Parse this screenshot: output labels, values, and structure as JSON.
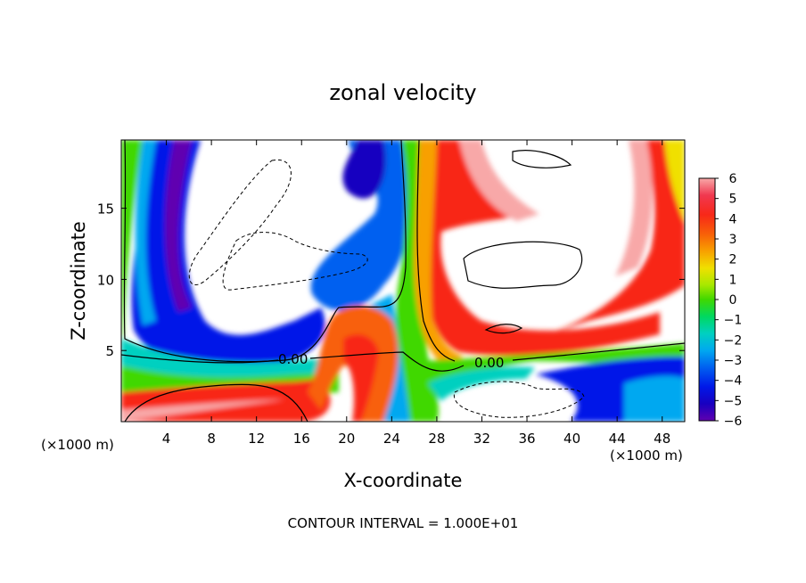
{
  "chart_data": {
    "type": "heatmap",
    "title": "zonal velocity",
    "xlabel": "X-coordinate",
    "ylabel": "Z-coordinate",
    "x_unit_left": "(×1000 m)",
    "x_unit_right": "(×1000 m)",
    "footer": "CONTOUR INTERVAL = 1.000E+01",
    "xlim": [
      0,
      50
    ],
    "ylim": [
      0,
      19.8
    ],
    "x_ticks": [
      4,
      8,
      12,
      16,
      20,
      24,
      28,
      32,
      36,
      40,
      44,
      48
    ],
    "y_ticks": [
      5,
      10,
      15
    ],
    "colorbar": {
      "ticks": [
        6,
        5,
        4,
        3,
        2,
        1,
        0,
        -1,
        -2,
        -3,
        -4,
        -5,
        -6
      ],
      "range": [
        -6,
        6
      ],
      "colors": [
        "#f8a8a8",
        "#f03850",
        "#f82818",
        "#f86008",
        "#f8a000",
        "#f0e000",
        "#a8e800",
        "#40d800",
        "#00d860",
        "#00d0c0",
        "#00a8f0",
        "#0060f0",
        "#0018e8",
        "#1800c0",
        "#6000b0"
      ]
    },
    "contour_labels": [
      {
        "text": "0.00",
        "x": 15.5,
        "z": 4.4
      },
      {
        "text": "0.00",
        "x": 32.5,
        "z": 4.0
      }
    ]
  }
}
